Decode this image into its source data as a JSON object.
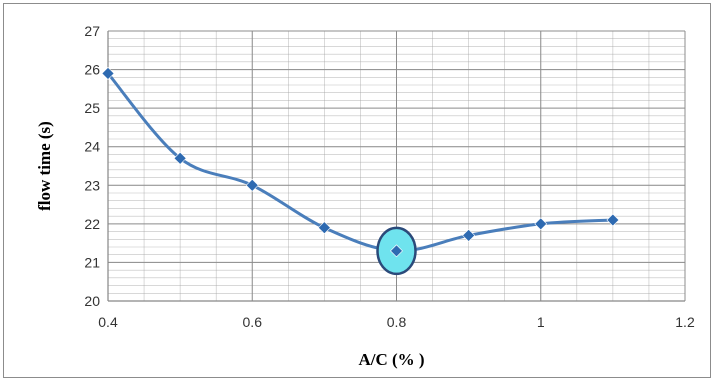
{
  "chart_data": {
    "type": "line",
    "xlabel": "A/C  (% )",
    "ylabel": "flow time (s)",
    "xlim": [
      0.4,
      1.2
    ],
    "ylim": [
      20,
      27
    ],
    "x_ticks": [
      "0.4",
      "0.6",
      "0.8",
      "1",
      "1.2"
    ],
    "y_ticks": [
      "20",
      "21",
      "22",
      "23",
      "24",
      "25",
      "26",
      "27"
    ],
    "grid": true,
    "smoothed": true,
    "series": [
      {
        "x": [
          0.4,
          0.5,
          0.6,
          0.7,
          0.8,
          0.9,
          1.0,
          1.1
        ],
        "y": [
          25.9,
          23.7,
          23.0,
          21.9,
          21.3,
          21.7,
          22.0,
          22.1
        ]
      }
    ],
    "highlight": {
      "x": 0.8,
      "y": 21.3
    },
    "colors": {
      "line": "#4a7ebb",
      "marker": "#2e6ab1",
      "grid": "#a6a6a6",
      "highlight_fill": "#6fe3ee",
      "highlight_stroke": "#2b4a7a"
    }
  }
}
